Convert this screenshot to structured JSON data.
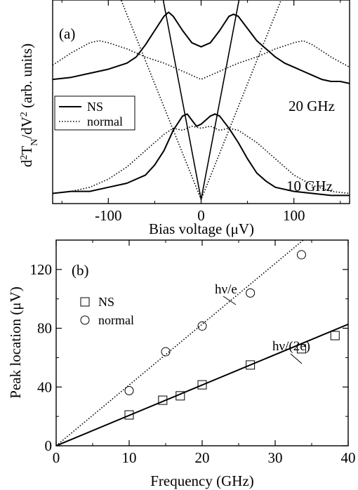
{
  "chart_data": [
    {
      "type": "line",
      "panel_label": "(a)",
      "xlabel": "Bias voltage (μV)",
      "ylabel_parts": {
        "d": "d",
        "sup2": "2",
        "T": "T",
        "sub": "N",
        "slash": "/dV",
        "sup2b": "2",
        "rest": " (arb. units)"
      },
      "xlim": [
        -160,
        160
      ],
      "ylim": [
        0,
        1
      ],
      "xticks": [
        -100,
        0,
        100
      ],
      "xtick_labels": [
        "-100",
        "0",
        "100"
      ],
      "legend": {
        "position": "upper-left",
        "entries": [
          {
            "label": "NS",
            "style": "solid"
          },
          {
            "label": "normal",
            "style": "dotted"
          }
        ]
      },
      "annotations": [
        {
          "text": "20 GHz",
          "x": 125,
          "y": 0.37
        },
        {
          "text": "10 GHz",
          "x": 120,
          "y": 0.08
        }
      ],
      "series": [
        {
          "group": "NS 20 GHz",
          "style": "solid",
          "x": [
            -160,
            -140,
            -120,
            -100,
            -80,
            -70,
            -60,
            -50,
            -40,
            -35,
            -30,
            -20,
            -10,
            0,
            10,
            20,
            30,
            35,
            40,
            50,
            60,
            70,
            80,
            90,
            100,
            110,
            120,
            130,
            140,
            150,
            160
          ],
          "y": [
            0.61,
            0.62,
            0.64,
            0.66,
            0.69,
            0.72,
            0.78,
            0.85,
            0.92,
            0.94,
            0.92,
            0.85,
            0.79,
            0.77,
            0.79,
            0.85,
            0.92,
            0.93,
            0.92,
            0.86,
            0.8,
            0.76,
            0.72,
            0.69,
            0.67,
            0.65,
            0.63,
            0.61,
            0.6,
            0.6,
            0.59
          ]
        },
        {
          "group": "NS 10 GHz",
          "style": "solid",
          "x": [
            -160,
            -140,
            -120,
            -100,
            -80,
            -60,
            -50,
            -40,
            -30,
            -20,
            -15,
            -10,
            -5,
            0,
            5,
            10,
            15,
            20,
            30,
            40,
            50,
            60,
            70,
            80,
            100,
            120,
            140,
            160
          ],
          "y": [
            0.05,
            0.06,
            0.06,
            0.08,
            0.1,
            0.14,
            0.19,
            0.26,
            0.36,
            0.43,
            0.44,
            0.41,
            0.38,
            0.39,
            0.41,
            0.43,
            0.44,
            0.43,
            0.37,
            0.3,
            0.22,
            0.15,
            0.11,
            0.08,
            0.06,
            0.05,
            0.04,
            0.04
          ]
        },
        {
          "group": "normal 20 GHz",
          "style": "dotted",
          "x": [
            -160,
            -140,
            -120,
            -110,
            -100,
            -80,
            -60,
            -40,
            -20,
            0,
            20,
            40,
            60,
            80,
            100,
            110,
            120,
            140,
            160
          ],
          "y": [
            0.68,
            0.74,
            0.79,
            0.8,
            0.79,
            0.76,
            0.72,
            0.69,
            0.65,
            0.61,
            0.65,
            0.69,
            0.72,
            0.76,
            0.79,
            0.8,
            0.78,
            0.72,
            0.67
          ]
        },
        {
          "group": "normal 10 GHz",
          "style": "dotted",
          "x": [
            -160,
            -140,
            -120,
            -100,
            -80,
            -60,
            -40,
            -30,
            -20,
            -10,
            0,
            10,
            20,
            30,
            40,
            60,
            80,
            100,
            120,
            140,
            160
          ],
          "y": [
            0.05,
            0.06,
            0.08,
            0.12,
            0.18,
            0.26,
            0.34,
            0.37,
            0.36,
            0.38,
            0.37,
            0.38,
            0.36,
            0.37,
            0.36,
            0.3,
            0.22,
            0.14,
            0.09,
            0.06,
            0.05
          ]
        }
      ],
      "guides": [
        {
          "style": "solid",
          "points": [
            [
              -45,
              1.1
            ],
            [
              0,
              0.02
            ],
            [
              45,
              1.1
            ]
          ]
        },
        {
          "style": "dotted",
          "points": [
            [
              -95,
              1.1
            ],
            [
              0,
              0.02
            ],
            [
              95,
              1.1
            ]
          ]
        }
      ]
    },
    {
      "type": "scatter",
      "panel_label": "(b)",
      "xlabel": "Frequency (GHz)",
      "ylabel": "Peak location (μV)",
      "xlim": [
        0,
        40
      ],
      "ylim": [
        0,
        140
      ],
      "xticks": [
        0,
        10,
        20,
        30,
        40
      ],
      "yticks": [
        0,
        40,
        80,
        120
      ],
      "legend": {
        "position": "upper-left",
        "entries": [
          {
            "label": "NS",
            "marker": "square"
          },
          {
            "label": "normal",
            "marker": "circle"
          }
        ]
      },
      "series": [
        {
          "name": "NS",
          "marker": "square",
          "x": [
            10,
            14.6,
            17,
            20,
            26.6,
            33.6,
            38.2
          ],
          "y": [
            21,
            31,
            34,
            41.5,
            55,
            66,
            75
          ]
        },
        {
          "name": "normal",
          "marker": "circle",
          "x": [
            10,
            15,
            20,
            26.6,
            33.6
          ],
          "y": [
            37.5,
            64,
            81.5,
            104,
            130
          ]
        }
      ],
      "fit_lines": [
        {
          "label": "hν/(2e)",
          "style": "solid",
          "slope": 2.068,
          "x_range": [
            0,
            40
          ]
        },
        {
          "label": "hν/e",
          "style": "dotted",
          "slope": 4.136,
          "x_range": [
            0,
            34
          ]
        }
      ]
    }
  ]
}
